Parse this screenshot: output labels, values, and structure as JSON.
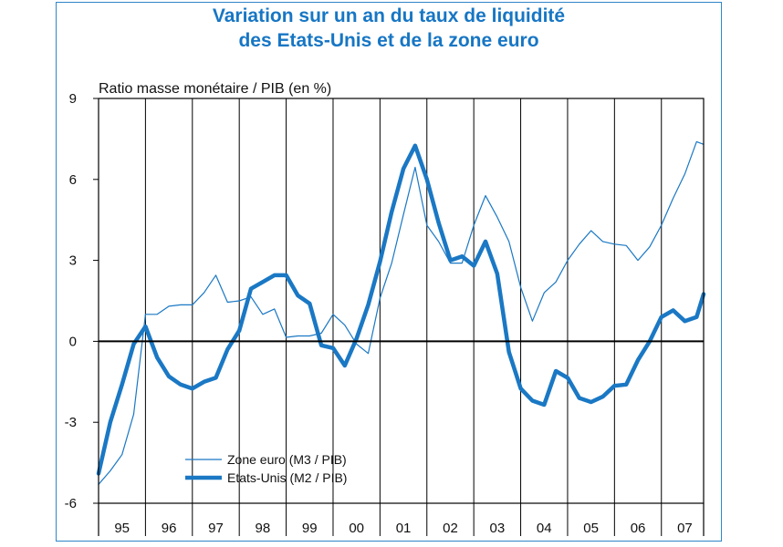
{
  "chart_data": {
    "type": "line",
    "title_lines": [
      "Variation sur un an du taux de liquidité",
      "des Etats-Unis et de la zone euro"
    ],
    "ylabel": "Ratio masse monétaire / PIB  (en %)",
    "ylim": [
      -6,
      9
    ],
    "yticks": [
      -6,
      -3,
      0,
      3,
      6,
      9
    ],
    "yticklabels": [
      "-6",
      "-3",
      "0",
      "3",
      "6",
      "9"
    ],
    "xlim": [
      1995,
      2007.9
    ],
    "categories": [
      "95",
      "96",
      "97",
      "98",
      "99",
      "00",
      "01",
      "02",
      "03",
      "04",
      "05",
      "06",
      "07"
    ],
    "grid": "vertical year separators",
    "legend_position": "lower-left",
    "colors": {
      "title": "#1776c4",
      "series": "#1a78c4",
      "frame": "#2f86c9"
    },
    "series": [
      {
        "name": "Zone euro (M3 / PIB)",
        "style": "thin",
        "points": [
          [
            1995.0,
            -5.3
          ],
          [
            1995.25,
            -4.8
          ],
          [
            1995.5,
            -4.2
          ],
          [
            1995.75,
            -2.7
          ],
          [
            1996.0,
            1.0
          ],
          [
            1996.25,
            1.0
          ],
          [
            1996.5,
            1.3
          ],
          [
            1996.75,
            1.35
          ],
          [
            1997.0,
            1.35
          ],
          [
            1997.25,
            1.8
          ],
          [
            1997.5,
            2.45
          ],
          [
            1997.75,
            1.45
          ],
          [
            1998.0,
            1.5
          ],
          [
            1998.25,
            1.65
          ],
          [
            1998.5,
            1.0
          ],
          [
            1998.75,
            1.2
          ],
          [
            1999.0,
            0.15
          ],
          [
            1999.25,
            0.2
          ],
          [
            1999.5,
            0.2
          ],
          [
            1999.75,
            0.3
          ],
          [
            2000.0,
            1.0
          ],
          [
            2000.25,
            0.6
          ],
          [
            2000.5,
            -0.1
          ],
          [
            2000.75,
            -0.45
          ],
          [
            2001.0,
            1.6
          ],
          [
            2001.25,
            2.9
          ],
          [
            2001.5,
            4.7
          ],
          [
            2001.75,
            6.45
          ],
          [
            2002.0,
            4.3
          ],
          [
            2002.25,
            3.7
          ],
          [
            2002.5,
            2.9
          ],
          [
            2002.75,
            2.9
          ],
          [
            2003.0,
            4.3
          ],
          [
            2003.25,
            5.4
          ],
          [
            2003.5,
            4.6
          ],
          [
            2003.75,
            3.7
          ],
          [
            2004.0,
            2.0
          ],
          [
            2004.25,
            0.75
          ],
          [
            2004.5,
            1.8
          ],
          [
            2004.75,
            2.2
          ],
          [
            2005.0,
            3.0
          ],
          [
            2005.25,
            3.6
          ],
          [
            2005.5,
            4.1
          ],
          [
            2005.75,
            3.7
          ],
          [
            2006.0,
            3.6
          ],
          [
            2006.25,
            3.55
          ],
          [
            2006.5,
            3.0
          ],
          [
            2006.75,
            3.5
          ],
          [
            2007.0,
            4.3
          ],
          [
            2007.25,
            5.3
          ],
          [
            2007.5,
            6.2
          ],
          [
            2007.75,
            7.4
          ],
          [
            2007.9,
            7.3
          ]
        ]
      },
      {
        "name": "Etats-Unis (M2 / PIB)",
        "style": "thick",
        "points": [
          [
            1995.0,
            -4.9
          ],
          [
            1995.25,
            -3.0
          ],
          [
            1995.5,
            -1.6
          ],
          [
            1995.75,
            -0.1
          ],
          [
            1996.0,
            0.55
          ],
          [
            1996.25,
            -0.6
          ],
          [
            1996.5,
            -1.3
          ],
          [
            1996.75,
            -1.6
          ],
          [
            1997.0,
            -1.75
          ],
          [
            1997.25,
            -1.5
          ],
          [
            1997.5,
            -1.35
          ],
          [
            1997.75,
            -0.3
          ],
          [
            1998.0,
            0.4
          ],
          [
            1998.25,
            1.95
          ],
          [
            1998.5,
            2.2
          ],
          [
            1998.75,
            2.45
          ],
          [
            1999.0,
            2.45
          ],
          [
            1999.25,
            1.7
          ],
          [
            1999.5,
            1.4
          ],
          [
            1999.75,
            -0.15
          ],
          [
            2000.0,
            -0.25
          ],
          [
            2000.25,
            -0.9
          ],
          [
            2000.5,
            0.1
          ],
          [
            2000.75,
            1.35
          ],
          [
            2001.0,
            2.95
          ],
          [
            2001.25,
            4.8
          ],
          [
            2001.5,
            6.4
          ],
          [
            2001.75,
            7.25
          ],
          [
            2002.0,
            6.0
          ],
          [
            2002.25,
            4.4
          ],
          [
            2002.5,
            3.0
          ],
          [
            2002.75,
            3.15
          ],
          [
            2003.0,
            2.8
          ],
          [
            2003.25,
            3.7
          ],
          [
            2003.5,
            2.5
          ],
          [
            2003.75,
            -0.4
          ],
          [
            2004.0,
            -1.75
          ],
          [
            2004.25,
            -2.2
          ],
          [
            2004.5,
            -2.35
          ],
          [
            2004.75,
            -1.1
          ],
          [
            2005.0,
            -1.35
          ],
          [
            2005.25,
            -2.1
          ],
          [
            2005.5,
            -2.25
          ],
          [
            2005.75,
            -2.05
          ],
          [
            2006.0,
            -1.65
          ],
          [
            2006.25,
            -1.6
          ],
          [
            2006.5,
            -0.7
          ],
          [
            2006.75,
            0.0
          ],
          [
            2007.0,
            0.9
          ],
          [
            2007.25,
            1.15
          ],
          [
            2007.5,
            0.75
          ],
          [
            2007.75,
            0.9
          ],
          [
            2007.9,
            1.75
          ]
        ]
      }
    ]
  }
}
